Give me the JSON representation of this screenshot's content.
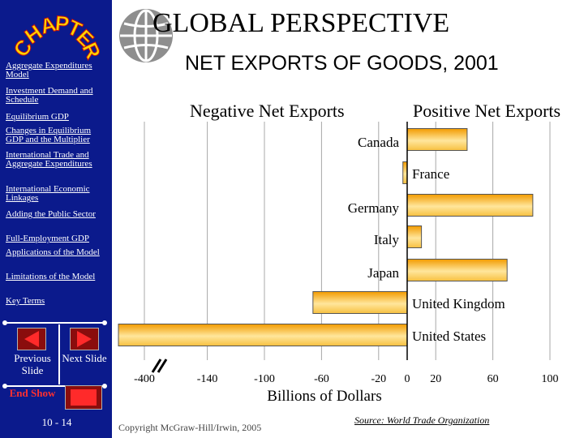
{
  "sidebar": {
    "chapter_letters": [
      "C",
      "H",
      "A",
      "P",
      "T",
      "E",
      "R"
    ],
    "links": [
      {
        "label": "Aggregate Expenditures Model"
      },
      {
        "label": "Investment Demand and Schedule"
      },
      {
        "label": "Equilibrium GDP"
      },
      {
        "label": "Changes in Equilibrium GDP and the Multiplier"
      },
      {
        "label": "International Trade and Aggregate Expenditures"
      },
      {
        "label": "International Economic Linkages"
      },
      {
        "label": "Adding the Public Sector"
      },
      {
        "label": "Full-Employment GDP"
      },
      {
        "label": "Applications of the Model"
      },
      {
        "label": "Limitations of the Model"
      },
      {
        "label": "Key Terms"
      }
    ],
    "previous_label": "Previous Slide",
    "next_label": "Next Slide",
    "end_label": "End Show",
    "page_number": "10 - 14"
  },
  "header": {
    "title": "GLOBAL  PERSPECTIVE",
    "subtitle": "NET EXPORTS OF GOODS, 2001",
    "negative_label": "Negative Net Exports",
    "positive_label": "Positive Net Exports"
  },
  "footer": {
    "copyright": "Copyright McGraw-Hill/Irwin, 2005",
    "source": "Source: World Trade Organization"
  },
  "colors": {
    "sidebar": "#0b1a8c",
    "bar_dark": "#f29b00",
    "bar_light": "#ffe69c",
    "chapter_fill": "#ffd500",
    "chapter_outline": "#c41010"
  },
  "chart_data": {
    "type": "bar",
    "orientation": "horizontal",
    "categories": [
      "Canada",
      "France",
      "Germany",
      "Italy",
      "Japan",
      "United Kingdom",
      "United States"
    ],
    "values": [
      42,
      -3,
      88,
      10,
      70,
      -66,
      -427
    ],
    "xlabel": "Billions of Dollars",
    "xlim": [
      -400,
      100
    ],
    "axis_break": "between -400 and -140",
    "xticks": [
      "-400",
      "-140",
      "-100",
      "-60",
      "-20",
      "0",
      "20",
      "60",
      "100"
    ],
    "grid": true
  }
}
